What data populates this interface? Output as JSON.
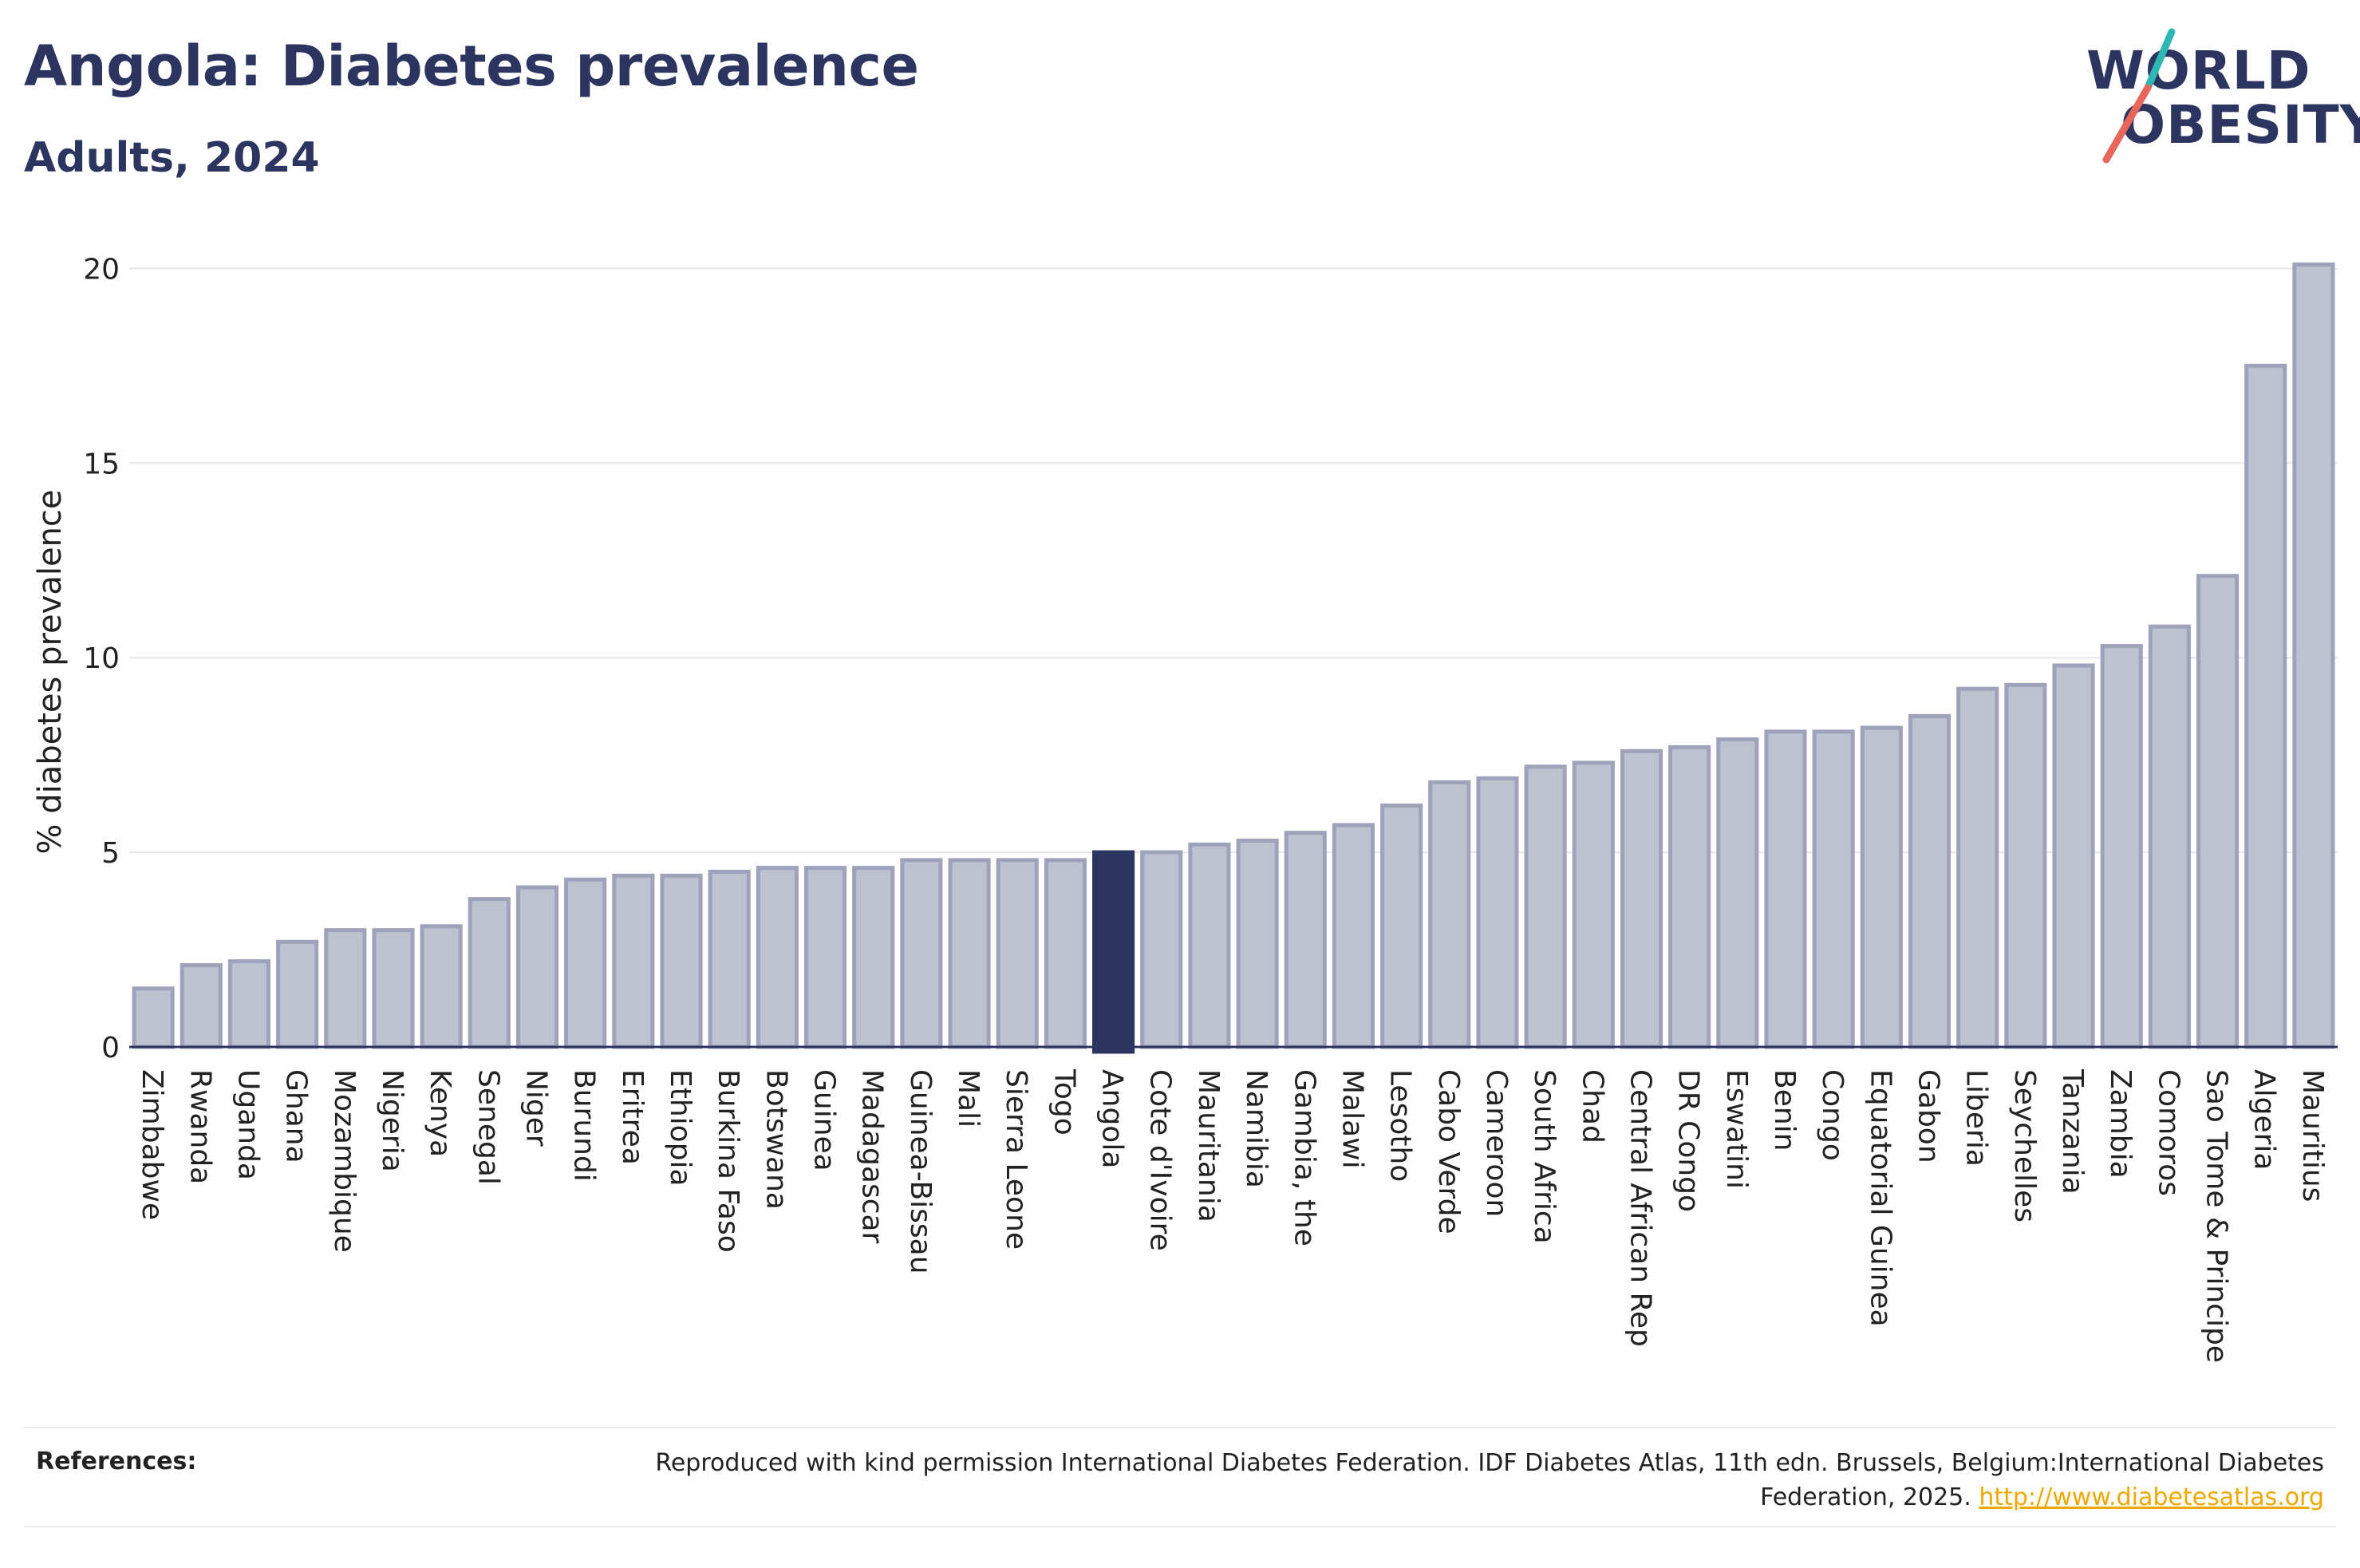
{
  "header": {
    "title": "Angola: Diabetes prevalence",
    "subtitle": "Adults, 2024"
  },
  "logo": {
    "line1": "WORLD",
    "line2": "OBESITY",
    "slash_colors": [
      "#2fb8b3",
      "#e8675a"
    ]
  },
  "references": {
    "label": "References:",
    "text": "Reproduced with kind permission International Diabetes Federation. IDF Diabetes Atlas, 11th edn. Brussels, Belgium:International Diabetes Federation, 2025.",
    "link": "http://www.diabetesatlas.org"
  },
  "colors": {
    "bar_fill": "#bec1ce",
    "bar_stroke": "#9ea3bb",
    "highlight": "#2b3560",
    "grid": "#e6e6ea",
    "baseline": "#2b3560"
  },
  "chart_data": {
    "type": "bar",
    "title": "Angola: Diabetes prevalence",
    "subtitle": "Adults, 2024",
    "xlabel": "",
    "ylabel": "% diabetes prevalence",
    "ylim": [
      0,
      20.5
    ],
    "yticks": [
      0,
      5,
      10,
      15,
      20
    ],
    "grid": true,
    "highlight": "Angola",
    "categories": [
      "Zimbabwe",
      "Rwanda",
      "Uganda",
      "Ghana",
      "Mozambique",
      "Nigeria",
      "Kenya",
      "Senegal",
      "Niger",
      "Burundi",
      "Eritrea",
      "Ethiopia",
      "Burkina Faso",
      "Botswana",
      "Guinea",
      "Madagascar",
      "Guinea-Bissau",
      "Mali",
      "Sierra Leone",
      "Togo",
      "Angola",
      "Cote d'Ivoire",
      "Mauritania",
      "Namibia",
      "Gambia, the",
      "Malawi",
      "Lesotho",
      "Cabo Verde",
      "Cameroon",
      "South Africa",
      "Chad",
      "Central African Rep",
      "DR Congo",
      "Eswatini",
      "Benin",
      "Congo",
      "Equatorial Guinea",
      "Gabon",
      "Liberia",
      "Seychelles",
      "Tanzania",
      "Zambia",
      "Comoros",
      "Sao Tome & Principe",
      "Algeria",
      "Mauritius"
    ],
    "values": [
      1.5,
      2.1,
      2.2,
      2.7,
      3.0,
      3.0,
      3.1,
      3.8,
      4.1,
      4.3,
      4.4,
      4.4,
      4.5,
      4.6,
      4.6,
      4.6,
      4.8,
      4.8,
      4.8,
      4.8,
      5.0,
      5.0,
      5.2,
      5.3,
      5.5,
      5.7,
      6.2,
      6.8,
      6.9,
      7.2,
      7.3,
      7.6,
      7.7,
      7.9,
      8.1,
      8.1,
      8.2,
      8.5,
      9.2,
      9.3,
      9.8,
      10.3,
      10.8,
      12.1,
      17.5,
      20.1
    ]
  }
}
